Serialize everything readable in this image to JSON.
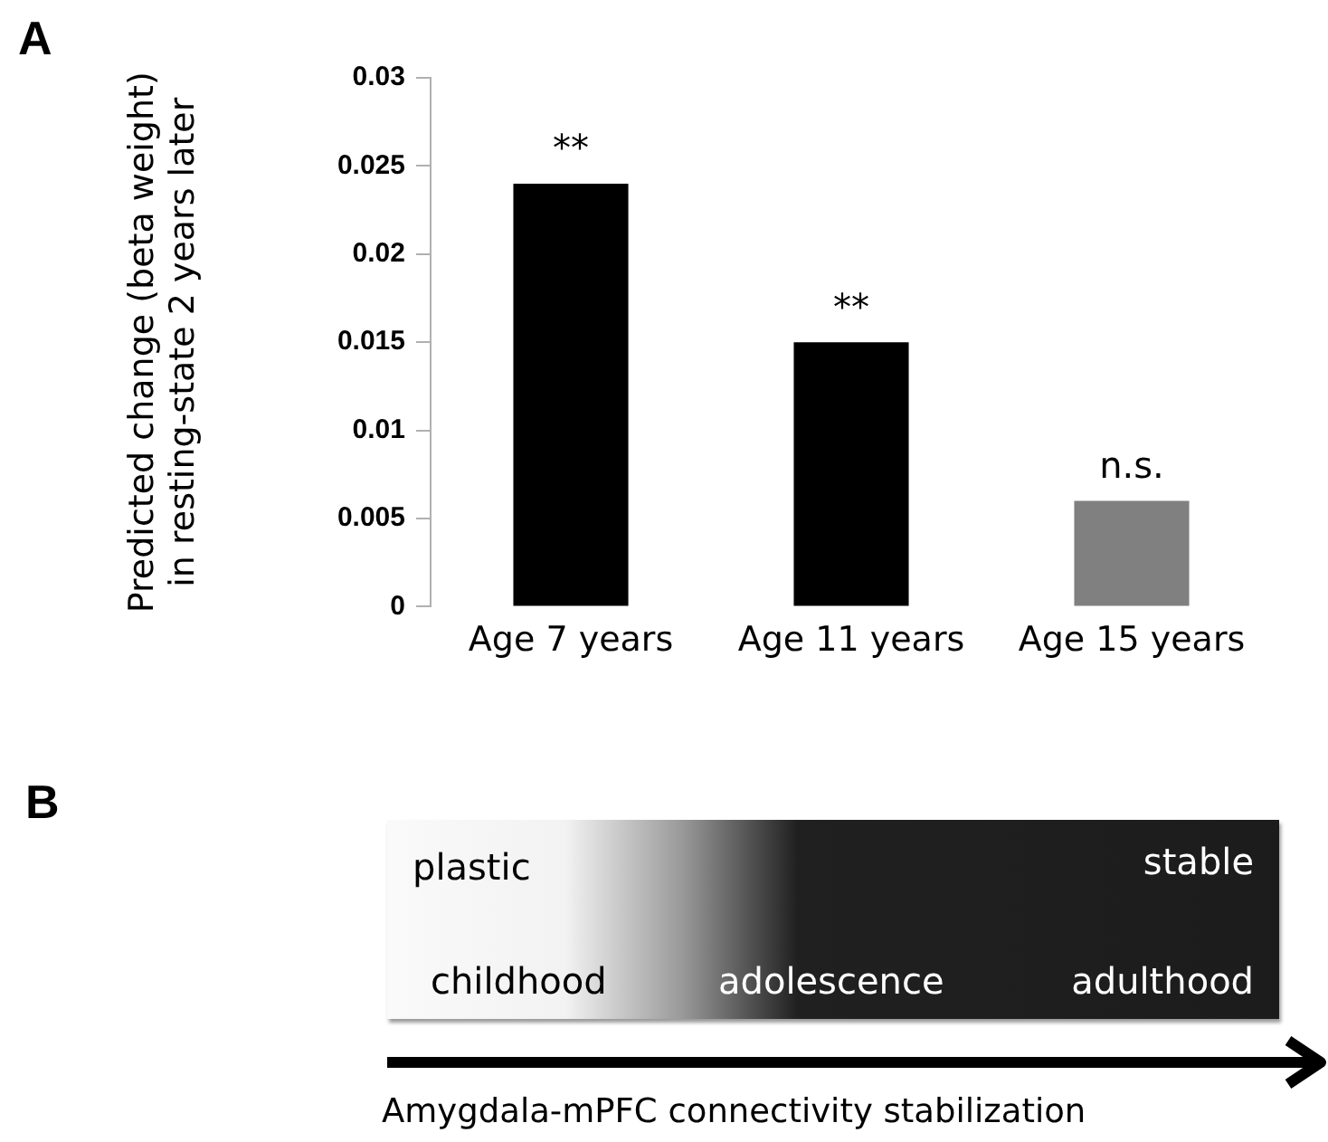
{
  "chart_data": {
    "type": "bar",
    "ylabel": "Predicted change (beta weight)\nin resting-state 2 years later",
    "categories": [
      "Age 7 years",
      "Age 11 years",
      "Age 15 years"
    ],
    "values": [
      0.024,
      0.015,
      0.006
    ],
    "colors": [
      "#000000",
      "#000000",
      "#808080"
    ],
    "ylim": [
      0,
      0.03
    ],
    "yticks": [
      0,
      0.005,
      0.01,
      0.015,
      0.02,
      0.025,
      0.03
    ],
    "grid": false,
    "legend": false,
    "annotations": [
      {
        "text": "**",
        "x": "Age 7 years",
        "y": 0.024
      },
      {
        "text": "**",
        "x": "Age 11 years",
        "y": 0.015
      },
      {
        "text": "n.s.",
        "x": "Age 15 years",
        "y": 0.006
      },
      "A",
      "B",
      "plastic",
      "stable",
      "childhood",
      "adolescence",
      "adulthood",
      "Amygdala-mPFC connectivity stabilization"
    ]
  }
}
